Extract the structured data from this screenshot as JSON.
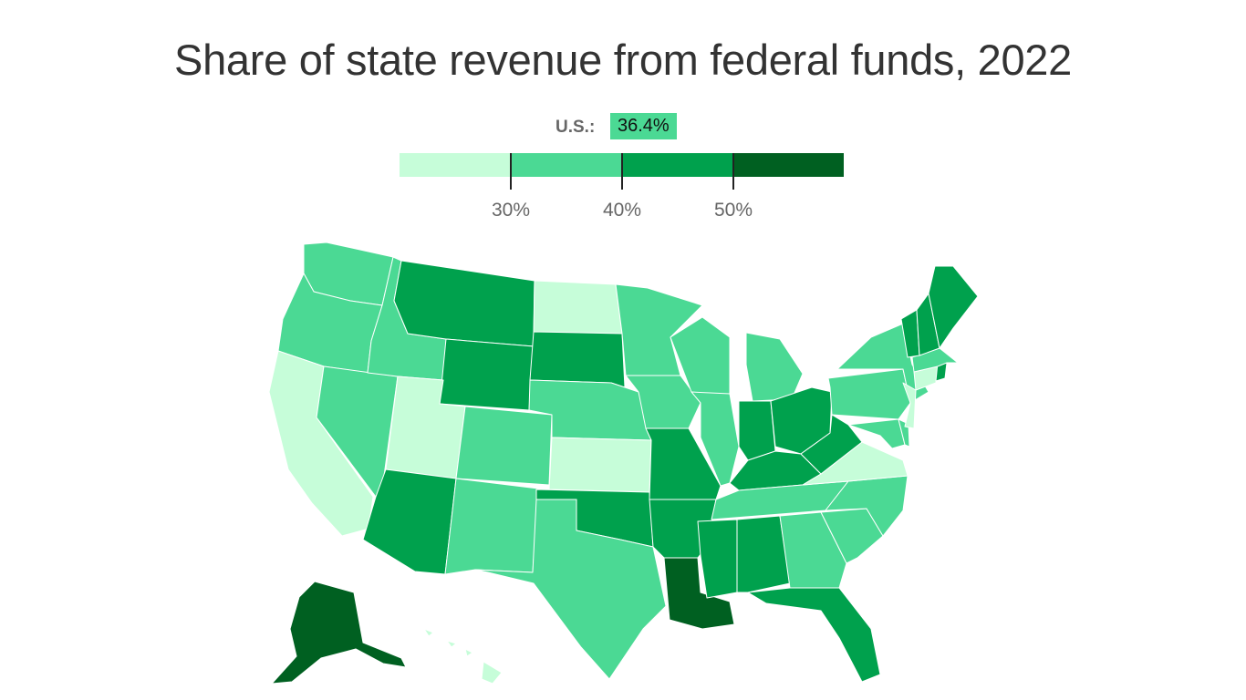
{
  "title": "Share of state revenue from federal funds, 2022",
  "national": {
    "label": "U.S.:",
    "value": "36.4%"
  },
  "legend": {
    "bins": [
      {
        "range": "under 30%",
        "color": "#c6fdd9"
      },
      {
        "range": "30-40%",
        "color": "#4bd994"
      },
      {
        "range": "40-50%",
        "color": "#00a14d"
      },
      {
        "range": "50%+",
        "color": "#006021"
      }
    ],
    "ticks": [
      "30%",
      "40%",
      "50%"
    ]
  },
  "states": [
    {
      "name": "Washington",
      "bin": 1
    },
    {
      "name": "Oregon",
      "bin": 1
    },
    {
      "name": "California",
      "bin": 0
    },
    {
      "name": "Nevada",
      "bin": 1
    },
    {
      "name": "Idaho",
      "bin": 1
    },
    {
      "name": "Montana",
      "bin": 2
    },
    {
      "name": "Wyoming",
      "bin": 2
    },
    {
      "name": "Utah",
      "bin": 0
    },
    {
      "name": "Arizona",
      "bin": 2
    },
    {
      "name": "Colorado",
      "bin": 1
    },
    {
      "name": "New Mexico",
      "bin": 1
    },
    {
      "name": "North Dakota",
      "bin": 0
    },
    {
      "name": "South Dakota",
      "bin": 2
    },
    {
      "name": "Nebraska",
      "bin": 1
    },
    {
      "name": "Kansas",
      "bin": 0
    },
    {
      "name": "Oklahoma",
      "bin": 2
    },
    {
      "name": "Texas",
      "bin": 1
    },
    {
      "name": "Minnesota",
      "bin": 1
    },
    {
      "name": "Iowa",
      "bin": 1
    },
    {
      "name": "Missouri",
      "bin": 2
    },
    {
      "name": "Arkansas",
      "bin": 2
    },
    {
      "name": "Louisiana",
      "bin": 3
    },
    {
      "name": "Wisconsin",
      "bin": 1
    },
    {
      "name": "Illinois",
      "bin": 1
    },
    {
      "name": "Michigan",
      "bin": 1
    },
    {
      "name": "Indiana",
      "bin": 2
    },
    {
      "name": "Ohio",
      "bin": 2
    },
    {
      "name": "Kentucky",
      "bin": 2
    },
    {
      "name": "Tennessee",
      "bin": 1
    },
    {
      "name": "Mississippi",
      "bin": 2
    },
    {
      "name": "Alabama",
      "bin": 2
    },
    {
      "name": "Georgia",
      "bin": 1
    },
    {
      "name": "Florida",
      "bin": 2
    },
    {
      "name": "South Carolina",
      "bin": 1
    },
    {
      "name": "North Carolina",
      "bin": 1
    },
    {
      "name": "Virginia",
      "bin": 0
    },
    {
      "name": "West Virginia",
      "bin": 2
    },
    {
      "name": "Pennsylvania",
      "bin": 1
    },
    {
      "name": "New York",
      "bin": 1
    },
    {
      "name": "Maryland",
      "bin": 1
    },
    {
      "name": "Delaware",
      "bin": 1
    },
    {
      "name": "New Jersey",
      "bin": 0
    },
    {
      "name": "Connecticut",
      "bin": 0
    },
    {
      "name": "Rhode Island",
      "bin": 2
    },
    {
      "name": "Massachusetts",
      "bin": 1
    },
    {
      "name": "Vermont",
      "bin": 2
    },
    {
      "name": "New Hampshire",
      "bin": 2
    },
    {
      "name": "Maine",
      "bin": 2
    },
    {
      "name": "Alaska",
      "bin": 3
    },
    {
      "name": "Hawaii",
      "bin": 0
    }
  ]
}
